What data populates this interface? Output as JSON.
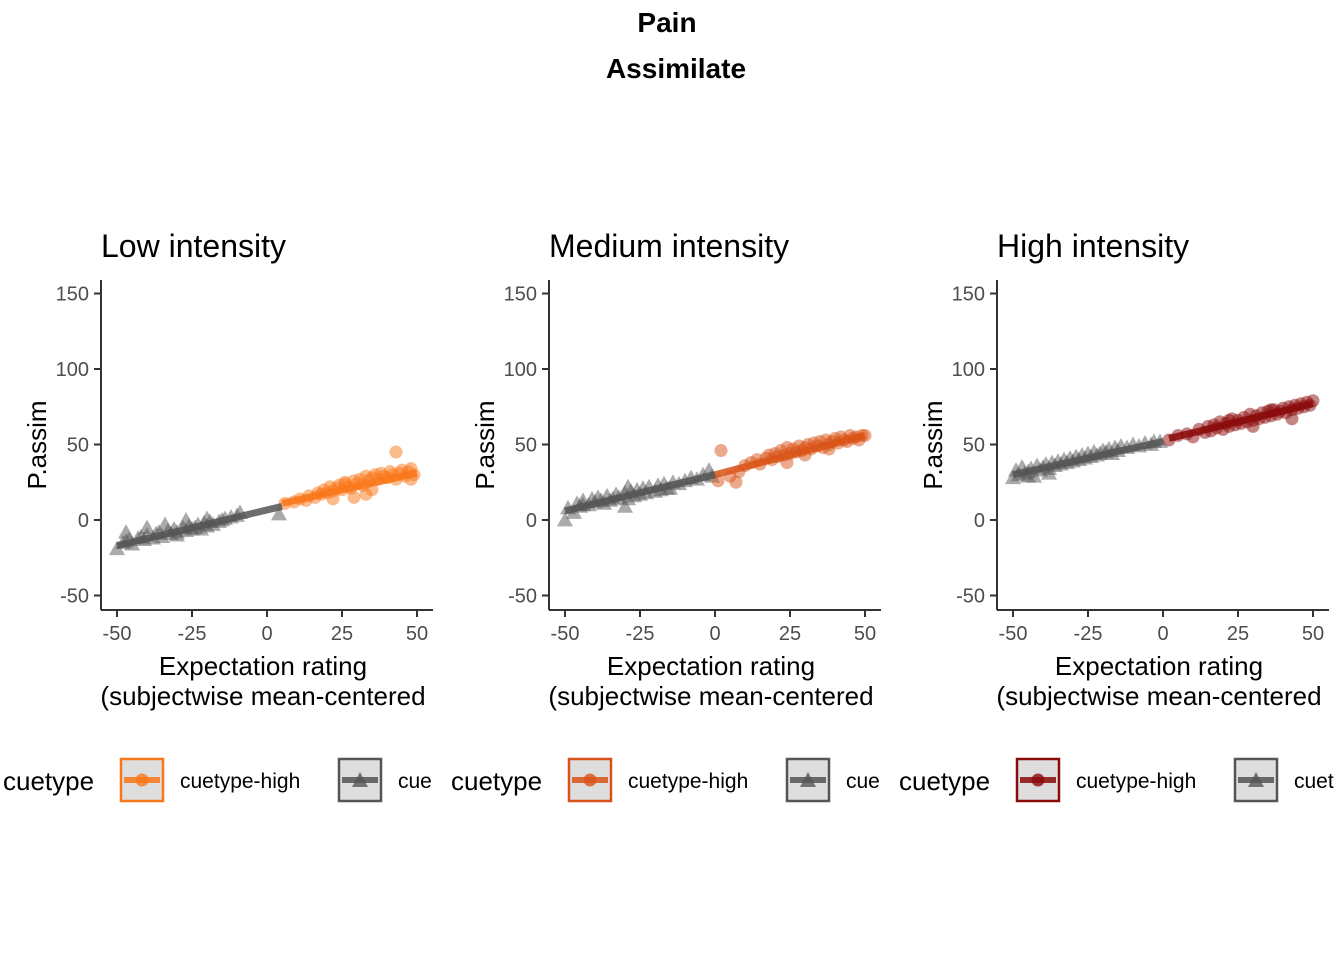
{
  "figure": {
    "title": "Pain",
    "subtitle": "Assimilate"
  },
  "chart_data": [
    {
      "type": "scatter",
      "title": "Low intensity",
      "xlabel": "Expectation rating",
      "xlabel2": "(subjectwise mean-centered",
      "ylabel": "P.assim",
      "xlim": [
        -55,
        55
      ],
      "ylim": [
        -58,
        155
      ],
      "xticks": [
        -50,
        -25,
        0,
        25,
        50
      ],
      "xtick_labels": [
        "-50",
        "-25",
        "0",
        "25",
        "50"
      ],
      "yticks": [
        -50,
        0,
        50,
        100,
        150
      ],
      "ytick_labels": [
        "-50",
        "0",
        "50",
        "100",
        "150"
      ],
      "legend": {
        "title": "cuetype",
        "items": [
          "cuetype-high",
          "cue"
        ]
      },
      "series": [
        {
          "name": "cuetype-high",
          "color": "#f9771a",
          "marker": "circle",
          "fit": {
            "x": [
              5,
              50
            ],
            "y": [
              11,
              31
            ]
          },
          "x": [
            6,
            9,
            11,
            13,
            14,
            16,
            17,
            18,
            19,
            20,
            21,
            22,
            23,
            24,
            25,
            26,
            27,
            28,
            29,
            30,
            31,
            32,
            33,
            34,
            35,
            36,
            37,
            38,
            39,
            40,
            41,
            42,
            43,
            44,
            45,
            46,
            47,
            48,
            49,
            29,
            35,
            43,
            48,
            22,
            26,
            33
          ],
          "y": [
            11,
            12,
            14,
            13,
            16,
            15,
            18,
            17,
            20,
            18,
            22,
            19,
            21,
            23,
            20,
            25,
            22,
            21,
            26,
            24,
            27,
            23,
            29,
            26,
            28,
            30,
            27,
            31,
            29,
            28,
            32,
            30,
            27,
            31,
            33,
            29,
            32,
            34,
            30,
            15,
            20,
            45,
            27,
            14,
            24,
            17
          ]
        },
        {
          "name": "cue",
          "color": "#555555",
          "marker": "triangle",
          "fit": {
            "x": [
              -50,
              5
            ],
            "y": [
              -17,
              9
            ]
          },
          "x": [
            -50,
            -48,
            -47,
            -46,
            -45,
            -43,
            -42,
            -41,
            -40,
            -38,
            -37,
            -36,
            -35,
            -33,
            -32,
            -31,
            -30,
            -28,
            -27,
            -26,
            -25,
            -24,
            -23,
            -22,
            -21,
            -20,
            -19,
            -18,
            -16,
            -15,
            -14,
            -12,
            -10,
            -9,
            -47,
            -40,
            -34,
            -27,
            -20,
            4,
            -30
          ],
          "y": [
            -19,
            -15,
            -14,
            -13,
            -16,
            -12,
            -11,
            -13,
            -10,
            -12,
            -9,
            -8,
            -11,
            -7,
            -9,
            -6,
            -8,
            -5,
            -7,
            -4,
            -6,
            -5,
            -3,
            -6,
            -2,
            -4,
            -1,
            -3,
            -1,
            0,
            1,
            2,
            3,
            5,
            -8,
            -5,
            -3,
            0,
            1,
            4,
            -10
          ]
        }
      ]
    },
    {
      "type": "scatter",
      "title": "Medium intensity",
      "xlabel": "Expectation rating",
      "xlabel2": "(subjectwise mean-centered",
      "ylabel": "P.assim",
      "xlim": [
        -55,
        55
      ],
      "ylim": [
        -58,
        155
      ],
      "xticks": [
        -50,
        -25,
        0,
        25,
        50
      ],
      "xtick_labels": [
        "-50",
        "-25",
        "0",
        "25",
        "50"
      ],
      "yticks": [
        -50,
        0,
        50,
        100,
        150
      ],
      "ytick_labels": [
        "-50",
        "0",
        "50",
        "100",
        "150"
      ],
      "legend": {
        "title": "cuetype",
        "items": [
          "cuetype-high",
          "cue"
        ]
      },
      "series": [
        {
          "name": "cuetype-high",
          "color": "#d95318",
          "marker": "circle",
          "fit": {
            "x": [
              0,
              50
            ],
            "y": [
              30,
              56
            ]
          },
          "x": [
            1,
            2,
            5,
            8,
            10,
            12,
            14,
            15,
            17,
            18,
            19,
            20,
            21,
            22,
            23,
            24,
            25,
            26,
            27,
            28,
            29,
            30,
            31,
            32,
            33,
            34,
            35,
            36,
            37,
            38,
            39,
            40,
            41,
            42,
            43,
            44,
            45,
            46,
            47,
            48,
            49,
            50,
            7,
            24,
            30,
            38
          ],
          "y": [
            26,
            46,
            29,
            32,
            36,
            38,
            40,
            37,
            41,
            43,
            40,
            44,
            42,
            46,
            43,
            48,
            44,
            47,
            45,
            49,
            46,
            48,
            50,
            47,
            51,
            49,
            52,
            48,
            53,
            50,
            52,
            54,
            51,
            55,
            53,
            52,
            56,
            54,
            55,
            53,
            56,
            56,
            25,
            38,
            43,
            47
          ]
        },
        {
          "name": "cue",
          "color": "#555555",
          "marker": "triangle",
          "fit": {
            "x": [
              -50,
              0
            ],
            "y": [
              6,
              30
            ]
          },
          "x": [
            -50,
            -49,
            -47,
            -46,
            -45,
            -44,
            -42,
            -41,
            -40,
            -39,
            -37,
            -36,
            -35,
            -34,
            -33,
            -32,
            -30,
            -29,
            -28,
            -27,
            -26,
            -25,
            -24,
            -23,
            -22,
            -20,
            -19,
            -18,
            -17,
            -16,
            -14,
            -12,
            -10,
            -8,
            -6,
            -4,
            -2,
            -1,
            -44,
            -38,
            -30,
            -29,
            -15
          ],
          "y": [
            0,
            8,
            5,
            11,
            9,
            13,
            10,
            14,
            12,
            15,
            11,
            16,
            13,
            14,
            17,
            15,
            18,
            14,
            19,
            16,
            20,
            17,
            21,
            18,
            22,
            19,
            23,
            20,
            24,
            21,
            25,
            24,
            26,
            28,
            27,
            30,
            33,
            29,
            10,
            13,
            9,
            22,
            21
          ]
        }
      ]
    },
    {
      "type": "scatter",
      "title": "High intensity",
      "xlabel": "Expectation rating",
      "xlabel2": "(subjectwise mean-centered",
      "ylabel": "P.assim",
      "xlim": [
        -55,
        55
      ],
      "ylim": [
        -58,
        155
      ],
      "xticks": [
        -50,
        -25,
        0,
        25,
        50
      ],
      "xtick_labels": [
        "-50",
        "-25",
        "0",
        "25",
        "50"
      ],
      "yticks": [
        -50,
        0,
        50,
        100,
        150
      ],
      "ytick_labels": [
        "-50",
        "0",
        "50",
        "100",
        "150"
      ],
      "legend": {
        "title": "cuetype",
        "items": [
          "cuetype-high",
          "cuet"
        ]
      },
      "series": [
        {
          "name": "cuetype-high",
          "color": "#8b0b0b",
          "marker": "circle",
          "fit": {
            "x": [
              2,
              50
            ],
            "y": [
              54,
              77
            ]
          },
          "x": [
            2,
            5,
            8,
            10,
            12,
            14,
            15,
            16,
            17,
            18,
            19,
            20,
            21,
            22,
            23,
            24,
            25,
            26,
            27,
            28,
            29,
            30,
            31,
            32,
            33,
            34,
            35,
            36,
            37,
            38,
            39,
            40,
            41,
            42,
            43,
            44,
            45,
            46,
            47,
            48,
            49,
            50,
            22,
            30,
            36,
            43
          ],
          "y": [
            53,
            56,
            57,
            55,
            60,
            58,
            62,
            59,
            63,
            61,
            65,
            60,
            64,
            62,
            67,
            63,
            66,
            64,
            68,
            65,
            70,
            66,
            69,
            67,
            71,
            68,
            72,
            69,
            73,
            70,
            72,
            74,
            71,
            75,
            73,
            76,
            74,
            77,
            75,
            78,
            76,
            79,
            66,
            62,
            73,
            67
          ]
        },
        {
          "name": "cuet",
          "color": "#555555",
          "marker": "triangle",
          "fit": {
            "x": [
              -50,
              0
            ],
            "y": [
              30,
              52
            ]
          },
          "x": [
            -50,
            -49,
            -48,
            -47,
            -46,
            -45,
            -44,
            -43,
            -42,
            -41,
            -40,
            -39,
            -38,
            -37,
            -36,
            -35,
            -34,
            -33,
            -32,
            -31,
            -30,
            -29,
            -28,
            -27,
            -26,
            -25,
            -24,
            -23,
            -22,
            -21,
            -20,
            -19,
            -18,
            -17,
            -16,
            -15,
            -14,
            -12,
            -10,
            -8,
            -6,
            -4,
            -3,
            -1,
            -45,
            -38
          ],
          "y": [
            28,
            33,
            30,
            35,
            31,
            32,
            34,
            29,
            36,
            33,
            35,
            37,
            34,
            38,
            36,
            39,
            37,
            40,
            38,
            41,
            39,
            42,
            40,
            43,
            41,
            44,
            42,
            45,
            43,
            44,
            46,
            45,
            47,
            44,
            48,
            46,
            49,
            48,
            50,
            49,
            51,
            50,
            52,
            52,
            29,
            31
          ]
        }
      ]
    }
  ]
}
